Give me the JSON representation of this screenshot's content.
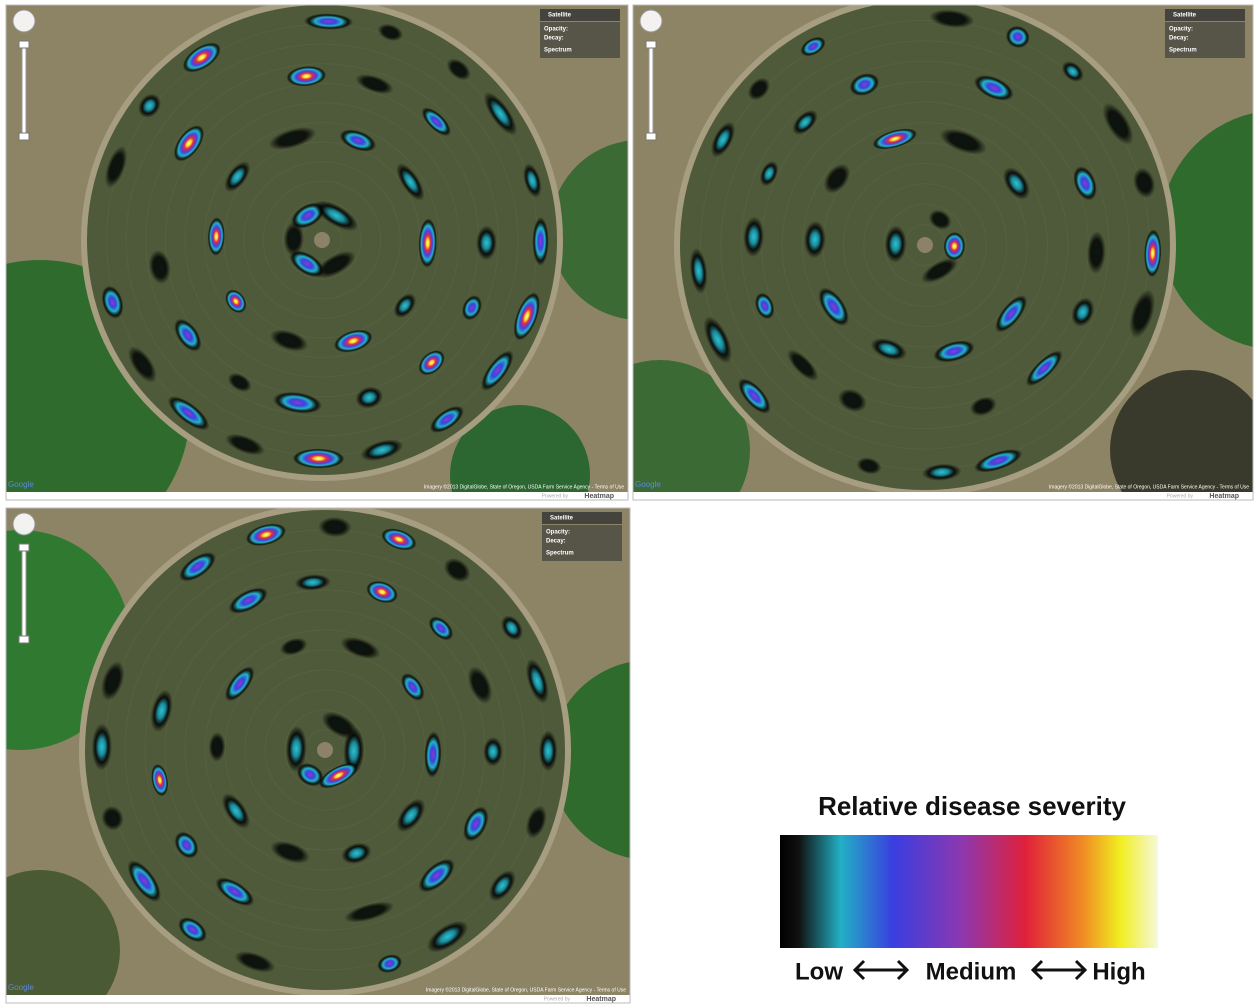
{
  "panels": [
    {
      "map_type": "Satellite",
      "controls": [
        "Opacity:",
        "Decay:"
      ],
      "spectrum": "Spectrum",
      "attribution": "Imagery ©2013 DigitalGlobe, State of Oregon, USDA Farm Service Agency - Terms of Use",
      "powered_by": "Powered by",
      "brand": "Heatmap",
      "google": "Google"
    },
    {
      "map_type": "Satellite",
      "controls": [
        "Opacity:",
        "Decay:"
      ],
      "spectrum": "Spectrum",
      "attribution": "Imagery ©2013 DigitalGlobe, State of Oregon, USDA Farm Service Agency - Terms of Use",
      "powered_by": "Powered by",
      "brand": "Heatmap",
      "google": "Google"
    },
    {
      "map_type": "Satellite",
      "controls": [
        "Opacity:",
        "Decay:"
      ],
      "spectrum": "Spectrum",
      "attribution": "Imagery ©2013 DigitalGlobe, State of Oregon, USDA Farm Service Agency - Terms of Use",
      "powered_by": "Powered by",
      "brand": "Heatmap",
      "google": "Google"
    }
  ],
  "legend": {
    "title": "Relative disease severity",
    "low": "Low",
    "medium": "Medium",
    "high": "High"
  }
}
